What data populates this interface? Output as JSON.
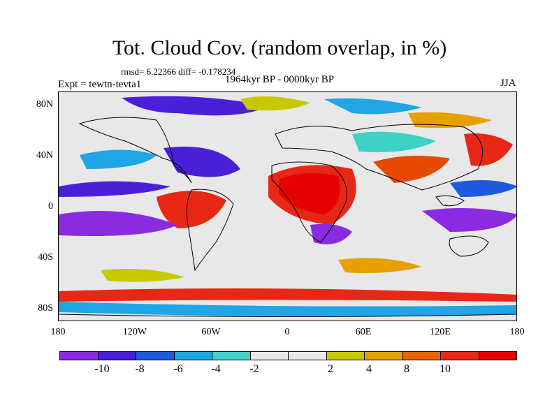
{
  "header": {
    "title": "Tot. Cloud Cov. (random overlap, in %)",
    "stats": "rmsd= 6.22366 diff= -0.178234",
    "subtitle": "1964kyr BP - 0000kyr BP",
    "experiment": "Expt = tewtn-tevta1",
    "season": "JJA"
  },
  "axes": {
    "y_ticks": [
      "80N",
      "40N",
      "0",
      "40S",
      "80S"
    ],
    "x_ticks": [
      "180",
      "120W",
      "60W",
      "0",
      "60E",
      "120E",
      "180"
    ]
  },
  "colorbar": {
    "colors": [
      "#8a2be2",
      "#4b1fd8",
      "#1e5adf",
      "#1ea6e6",
      "#3fd0c8",
      "#e8e8e8",
      "#e8e8e8",
      "#c8c800",
      "#e6a000",
      "#e66400",
      "#e62814",
      "#e60000"
    ],
    "labels": [
      "-10",
      "-8",
      "-6",
      "-4",
      "-2",
      "2",
      "4",
      "8",
      "10"
    ]
  },
  "map": {
    "projection": "cylindrical equidistant",
    "lon_range": [
      -180,
      180
    ],
    "lat_range": [
      -90,
      90
    ],
    "background_color": "#e8e8e8",
    "coastlines": "black"
  }
}
